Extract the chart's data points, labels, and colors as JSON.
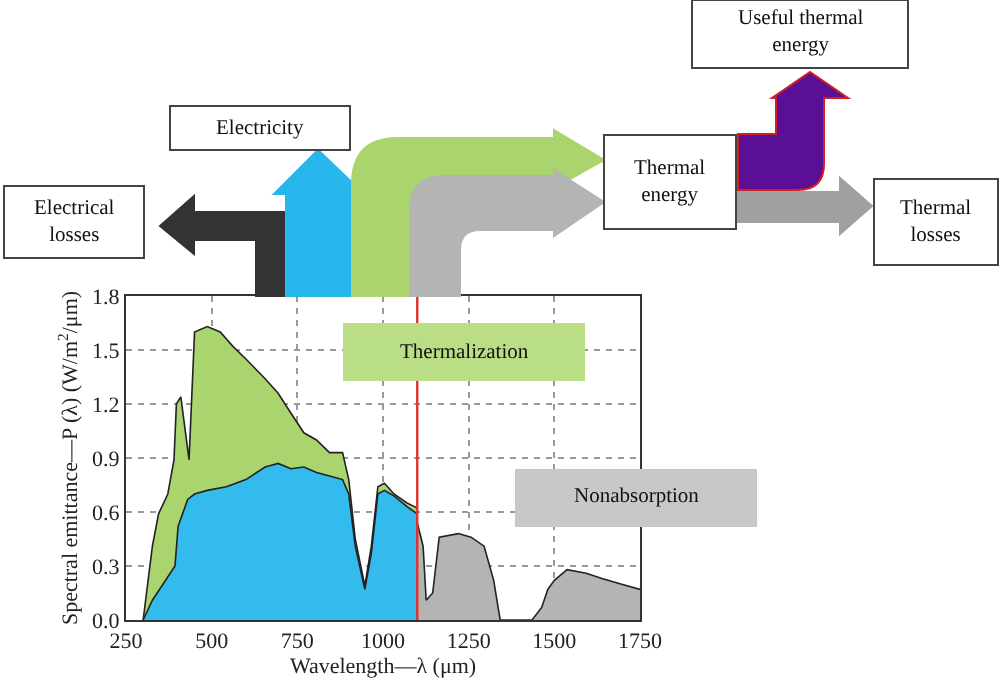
{
  "chart_data": {
    "type": "area",
    "xlabel": "Wavelength—λ (μm)",
    "ylabel": "Spectral emittance—P (λ) (W/m$^{2}$/μm)",
    "xlim": [
      250,
      1750
    ],
    "xticks": [
      250,
      500,
      750,
      1000,
      1250,
      1500,
      1750
    ],
    "ylim": [
      0,
      1.8
    ],
    "yticks": [
      {
        "value": 0,
        "label": "0.0"
      },
      0.3,
      0.6,
      0.9,
      1.2,
      1.5,
      1.8
    ],
    "grid": true,
    "series": [
      {
        "color": "#a9d46e",
        "x": [
          300,
          327,
          345,
          372,
          390,
          397,
          410,
          434,
          450,
          487,
          525,
          562,
          600,
          656,
          694,
          731,
          769,
          806,
          844,
          882,
          900,
          919,
          947,
          966,
          985,
          1004,
          1032,
          1070,
          1092,
          1100
        ],
        "values": [
          0,
          0.41,
          0.59,
          0.7,
          0.89,
          1.2,
          1.24,
          0.89,
          1.6,
          1.63,
          1.6,
          1.52,
          1.45,
          1.34,
          1.26,
          1.15,
          1.04,
          1.0,
          0.93,
          0.93,
          0.78,
          0.45,
          0.19,
          0.41,
          0.74,
          0.76,
          0.7,
          0.65,
          0.63,
          0.62
        ]
      },
      {
        "color": "#33bbee",
        "x": [
          300,
          327,
          355,
          393,
          402,
          430,
          450,
          487,
          543,
          600,
          656,
          694,
          731,
          769,
          806,
          844,
          882,
          900,
          919,
          947,
          966,
          985,
          1004,
          1032,
          1070,
          1100
        ],
        "values": [
          0,
          0.11,
          0.19,
          0.3,
          0.52,
          0.67,
          0.7,
          0.72,
          0.74,
          0.78,
          0.85,
          0.87,
          0.84,
          0.85,
          0.82,
          0.8,
          0.78,
          0.7,
          0.41,
          0.17,
          0.37,
          0.7,
          0.72,
          0.69,
          0.63,
          0.59
        ]
      },
      {
        "color": "#b4b4b4",
        "x": [
          1100,
          1117,
          1126,
          1145,
          1164,
          1220,
          1257,
          1295,
          1323,
          1342,
          1435,
          1463,
          1481,
          1500,
          1537,
          1593,
          1639,
          1694,
          1750
        ],
        "values": [
          0.54,
          0.41,
          0.11,
          0.15,
          0.46,
          0.48,
          0.46,
          0.41,
          0.22,
          0,
          0,
          0.07,
          0.17,
          0.22,
          0.28,
          0.26,
          0.23,
          0.2,
          0.17
        ]
      }
    ],
    "ref_lines": [
      {
        "axis": "x",
        "value": 1100,
        "color": "#e03030"
      }
    ],
    "annotations": [
      "Thermalization",
      "Nonabsorption",
      "Electrical losses",
      "Electricity",
      "Thermal energy",
      "Useful thermal energy",
      "Thermal losses"
    ]
  }
}
